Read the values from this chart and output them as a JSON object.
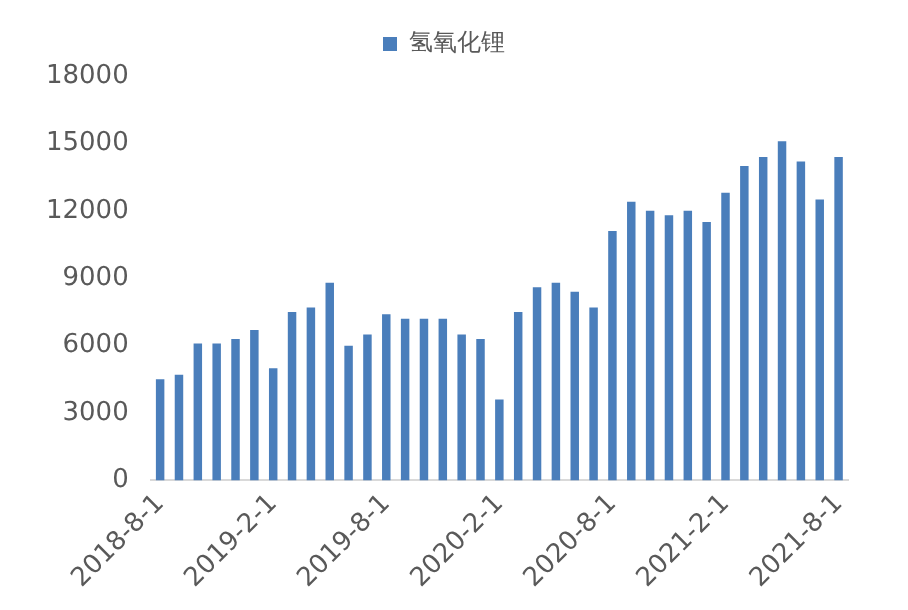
{
  "chart_data": {
    "type": "bar",
    "categories": [
      "2018-8-1",
      null,
      null,
      null,
      null,
      null,
      "2019-2-1",
      null,
      null,
      null,
      null,
      null,
      "2019-8-1",
      null,
      null,
      null,
      null,
      null,
      "2020-2-1",
      null,
      null,
      null,
      null,
      null,
      "2020-8-1",
      null,
      null,
      null,
      null,
      null,
      "2021-2-1",
      null,
      null,
      null,
      null,
      null,
      "2021-8-1"
    ],
    "series": [
      {
        "name": "氢氧化锂",
        "color": "#4a7ebb",
        "values": [
          4500,
          4700,
          6100,
          6100,
          6300,
          6700,
          5000,
          7500,
          7700,
          8800,
          6000,
          6500,
          7400,
          7200,
          7200,
          7200,
          6500,
          6300,
          3600,
          7500,
          8600,
          8800,
          8400,
          7700,
          11100,
          12400,
          12000,
          11800,
          12000,
          11500,
          12800,
          14000,
          14400,
          15100,
          14200,
          12500,
          14400
        ]
      }
    ],
    "ylim": [
      0,
      18000
    ],
    "yticks": [
      0,
      3000,
      6000,
      9000,
      12000,
      15000,
      18000
    ],
    "grid": false,
    "legend": "top"
  }
}
